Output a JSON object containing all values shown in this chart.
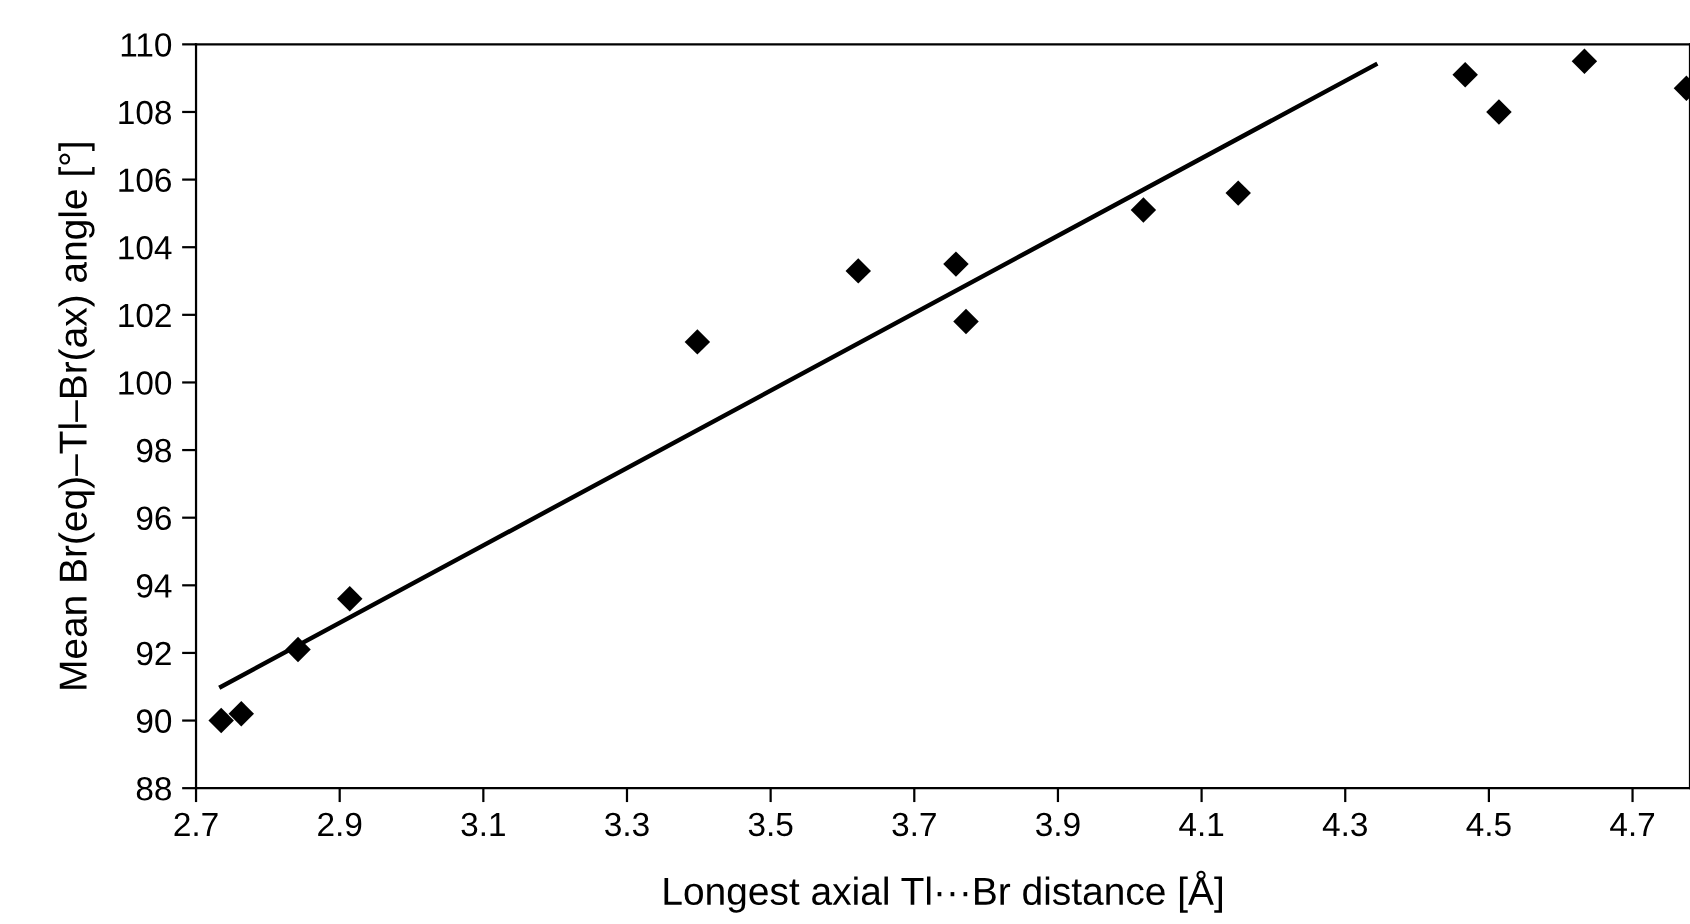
{
  "chart_data": {
    "type": "scatter",
    "xlabel": "Longest axial Tl···Br distance [Å]",
    "ylabel": "Mean Br(eq)–Tl–Br(ax) angle [°]",
    "series": [
      {
        "color": "#000000",
        "marker": "diamond",
        "x": [
          2.735,
          2.763,
          2.842,
          2.914,
          3.398,
          3.622,
          3.758,
          3.772,
          4.019,
          4.151,
          4.467,
          4.514,
          4.633,
          4.775
        ],
        "values": [
          90.0,
          90.2,
          92.1,
          93.6,
          101.2,
          103.3,
          103.5,
          101.8,
          105.1,
          105.6,
          109.1,
          108.0,
          109.5,
          108.7
        ]
      },
      {
        "type": "line",
        "color": "#000000",
        "marker": "none",
        "line_style": "solid",
        "x": [
          2.735,
          4.342
        ],
        "values": [
          91.0,
          109.4
        ]
      }
    ],
    "xlim": [
      2.7,
      4.78
    ],
    "xticks": [
      {
        "value": 2.7,
        "label": "2.7"
      },
      {
        "value": 2.9,
        "label": "2.9"
      },
      {
        "value": 3.1,
        "label": "3.1"
      },
      {
        "value": 3.3,
        "label": "3.3"
      },
      {
        "value": 3.5,
        "label": "3.5"
      },
      {
        "value": 3.7,
        "label": "3.7"
      },
      {
        "value": 3.9,
        "label": "3.9"
      },
      {
        "value": 4.1,
        "label": "4.1"
      },
      {
        "value": 4.3,
        "label": "4.3"
      },
      {
        "value": 4.5,
        "label": "4.5"
      },
      {
        "value": 4.7,
        "label": "4.7"
      }
    ],
    "ylim": [
      88,
      110
    ],
    "yticks": [
      88,
      90,
      92,
      94,
      96,
      98,
      100,
      102,
      104,
      106,
      108,
      110
    ],
    "grid": false,
    "legend": false
  }
}
